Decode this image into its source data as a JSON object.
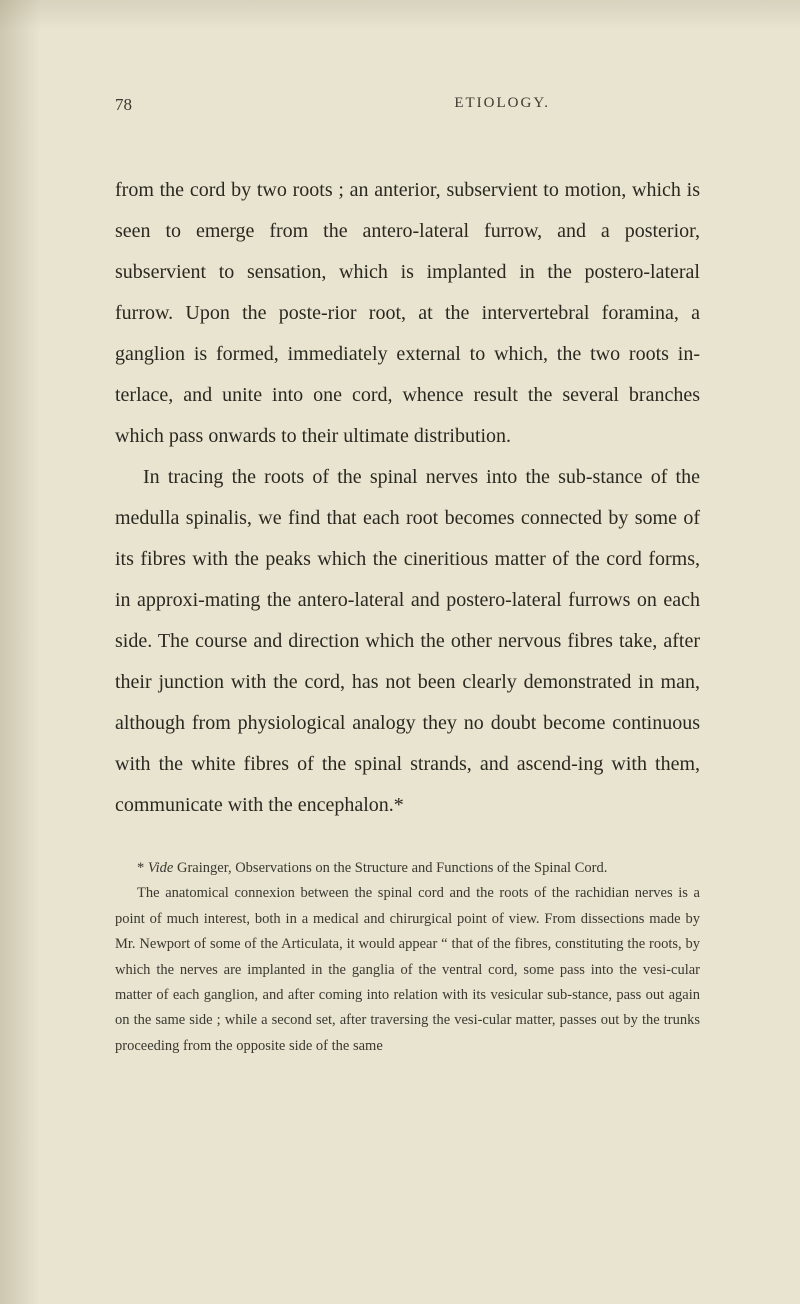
{
  "header": {
    "page_number": "78",
    "running_title": "ETIOLOGY."
  },
  "paragraphs": {
    "p1": "from the cord by two roots ; an anterior, subservient to motion, which is seen to emerge from the antero-lateral furrow, and a posterior, subservient to sensation, which is implanted in the postero-lateral furrow. Upon the poste-rior root, at the intervertebral foramina, a ganglion is formed, immediately external to which, the two roots in-terlace, and unite into one cord, whence result the several branches which pass onwards to their ultimate distribution.",
    "p2": "In tracing the roots of the spinal nerves into the sub-stance of the medulla spinalis, we find that each root becomes connected by some of its fibres with the peaks which the cineritious matter of the cord forms, in approxi-mating the antero-lateral and postero-lateral furrows on each side. The course and direction which the other nervous fibres take, after their junction with the cord, has not been clearly demonstrated in man, although from physiological analogy they no doubt become continuous with the white fibres of the spinal strands, and ascend-ing with them, communicate with the encephalon.*"
  },
  "footnote": {
    "f1_prefix": "* ",
    "f1_italic": "Vide",
    "f1_rest": " Grainger, Observations on the Structure and Functions of the Spinal Cord.",
    "f2": "The anatomical connexion between the spinal cord and the roots of the rachidian nerves is a point of much interest, both in a medical and chirurgical point of view. From dissections made by Mr. Newport of some of the Articulata, it would appear “ that of the fibres, constituting the roots, by which the nerves are implanted in the ganglia of the ventral cord, some pass into the vesi-cular matter of each ganglion, and after coming into relation with its vesicular sub-stance, pass out again on the same side ; while a second set, after traversing the vesi-cular matter, passes out by the trunks proceeding from the opposite side of the same"
  }
}
